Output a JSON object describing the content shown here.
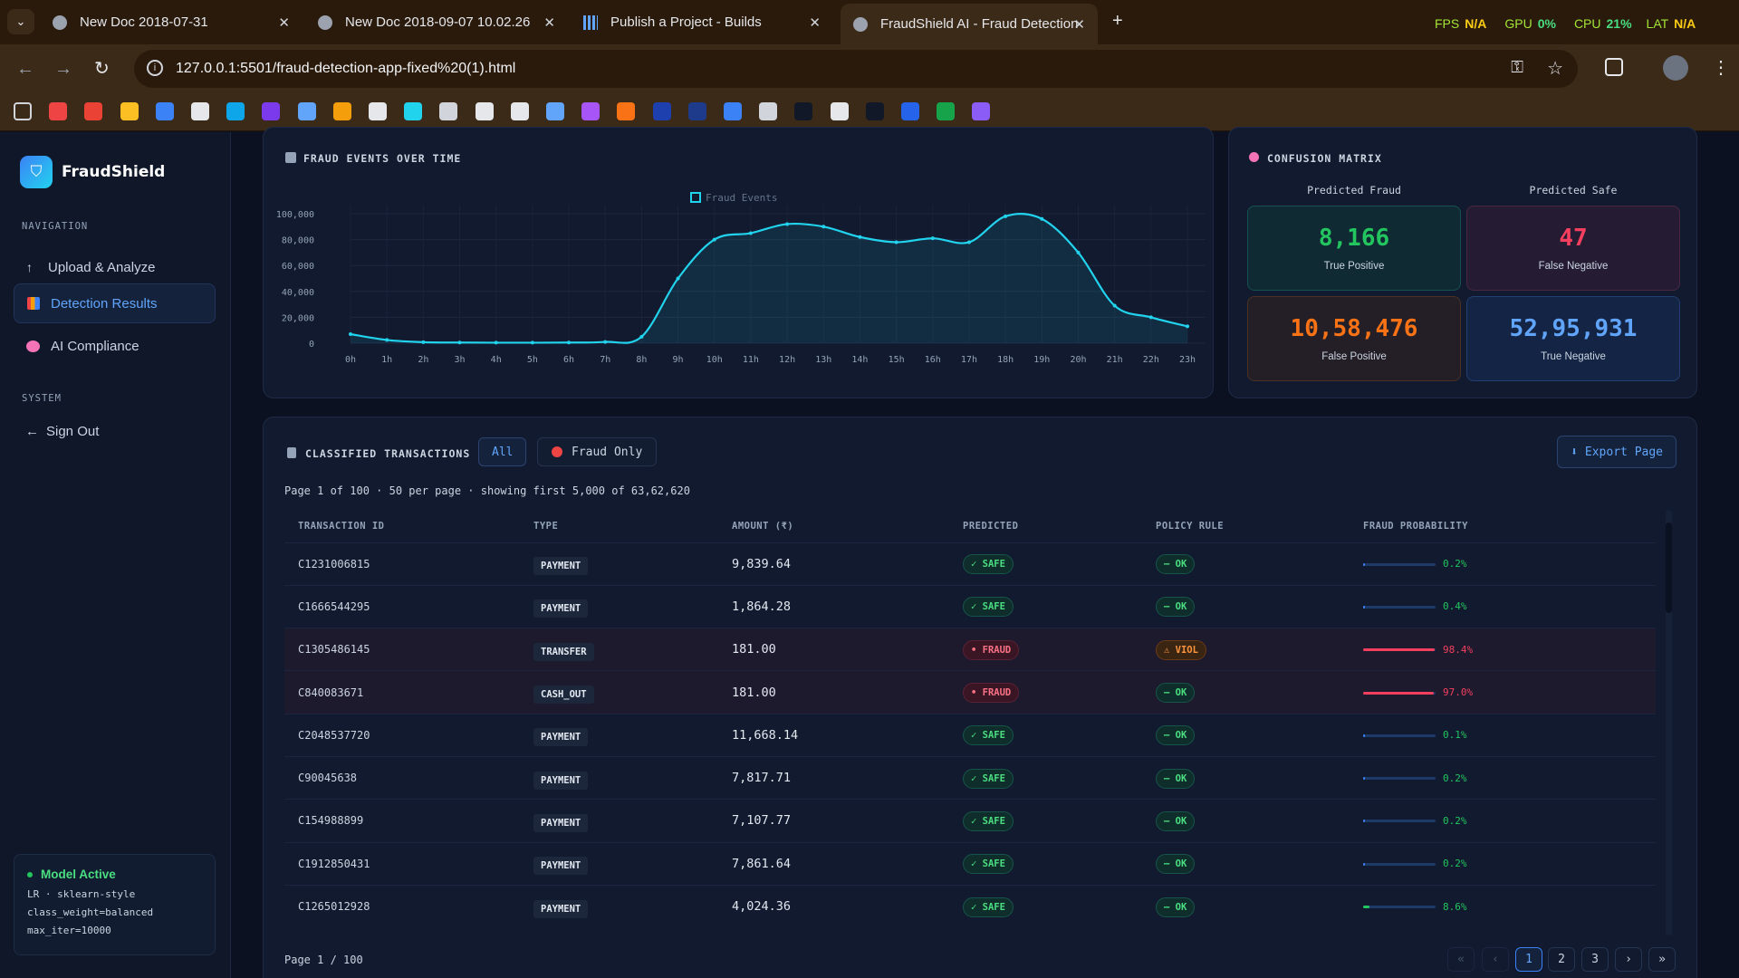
{
  "browser": {
    "tabs": [
      {
        "title": "New Doc 2018-07-31"
      },
      {
        "title": "New Doc 2018-09-07 10.02.26"
      },
      {
        "title": "Publish a Project - Builds"
      },
      {
        "title": "FraudShield AI - Fraud Detection"
      }
    ],
    "overlay": {
      "fps_label": "FPS",
      "fps_value": "N/A",
      "gpu_label": "GPU",
      "gpu_value": "0%",
      "cpu_label": "CPU",
      "cpu_value": "21%",
      "lat_label": "LAT",
      "lat_value": "N/A"
    },
    "url": "127.0.0.1:5501/fraud-detection-app-fixed%20(1).html",
    "bookmark_icons": [
      "apps",
      "youtube",
      "gmail",
      "keep",
      "meet",
      "six",
      "is",
      "h",
      "gemini",
      "blender",
      "github",
      "plus",
      "cat",
      "chatgpt",
      "s",
      "bot",
      "star",
      "sparkle",
      "un",
      "d",
      "shape",
      "globe",
      "hi",
      "cc",
      "tuf",
      "c",
      "gg",
      "u"
    ]
  },
  "sidebar": {
    "brand": "FraudShield",
    "nav_heading": "NAVIGATION",
    "items": [
      {
        "label": "Upload & Analyze",
        "icon": "upload-icon"
      },
      {
        "label": "Detection Results",
        "icon": "chart-icon"
      },
      {
        "label": "AI Compliance",
        "icon": "brain-icon"
      }
    ],
    "system_heading": "SYSTEM",
    "signout": "Sign Out",
    "model": {
      "status": "Model Active",
      "line1": "LR · sklearn-style",
      "line2": "class_weight=balanced",
      "line3": "max_iter=10000"
    }
  },
  "fraud_chart": {
    "title": "FRAUD EVENTS OVER TIME"
  },
  "chart_data": {
    "type": "area",
    "title": "FRAUD EVENTS OVER TIME",
    "legend": "Fraud Events",
    "legend_position": "top-center",
    "x": [
      "0h",
      "1h",
      "2h",
      "3h",
      "4h",
      "5h",
      "6h",
      "7h",
      "8h",
      "9h",
      "10h",
      "11h",
      "12h",
      "13h",
      "14h",
      "15h",
      "16h",
      "17h",
      "18h",
      "19h",
      "20h",
      "21h",
      "22h",
      "23h"
    ],
    "series": [
      {
        "name": "Fraud Events",
        "values": [
          7000,
          2500,
          800,
          500,
          400,
          400,
          500,
          1000,
          5000,
          50000,
          80000,
          85000,
          92000,
          90000,
          82000,
          78000,
          81000,
          78000,
          98000,
          96000,
          70000,
          29000,
          20000,
          13000
        ]
      }
    ],
    "yticks": [
      "0",
      "20,000",
      "40,000",
      "60,000",
      "80,000",
      "100,000"
    ],
    "ylim": [
      0,
      100000
    ],
    "grid": true,
    "color": "#22d3ee"
  },
  "confusion": {
    "title": "CONFUSION MATRIX",
    "col1": "Predicted Fraud",
    "col2": "Predicted Safe",
    "tp": {
      "value": "8,166",
      "label": "True Positive"
    },
    "fn": {
      "value": "47",
      "label": "False Negative"
    },
    "fp": {
      "value": "10,58,476",
      "label": "False Positive"
    },
    "tn": {
      "value": "52,95,931",
      "label": "True Negative"
    }
  },
  "transactions": {
    "title": "CLASSIFIED TRANSACTIONS",
    "filter_all": "All",
    "filter_fraud": "Fraud Only",
    "export": "Export Page",
    "summary": "Page 1 of 100 · 50 per page · showing first 5,000 of 63,62,620",
    "columns": [
      "TRANSACTION ID",
      "TYPE",
      "AMOUNT (₹)",
      "PREDICTED",
      "POLICY RULE",
      "FRAUD PROBABILITY"
    ],
    "rows": [
      {
        "id": "C1231006815",
        "type": "PAYMENT",
        "amount": "9,839.64",
        "pred": "✓ SAFE",
        "rule": "— OK",
        "prob": "0.2%",
        "p": 0.002,
        "fraud": false,
        "viol": false
      },
      {
        "id": "C1666544295",
        "type": "PAYMENT",
        "amount": "1,864.28",
        "pred": "✓ SAFE",
        "rule": "— OK",
        "prob": "0.4%",
        "p": 0.004,
        "fraud": false,
        "viol": false
      },
      {
        "id": "C1305486145",
        "type": "TRANSFER",
        "amount": "181.00",
        "pred": "• FRAUD",
        "rule": "⚠ VIOL",
        "prob": "98.4%",
        "p": 0.984,
        "fraud": true,
        "viol": true
      },
      {
        "id": "C840083671",
        "type": "CASH_OUT",
        "amount": "181.00",
        "pred": "• FRAUD",
        "rule": "— OK",
        "prob": "97.0%",
        "p": 0.97,
        "fraud": true,
        "viol": false
      },
      {
        "id": "C2048537720",
        "type": "PAYMENT",
        "amount": "11,668.14",
        "pred": "✓ SAFE",
        "rule": "— OK",
        "prob": "0.1%",
        "p": 0.001,
        "fraud": false,
        "viol": false
      },
      {
        "id": "C90045638",
        "type": "PAYMENT",
        "amount": "7,817.71",
        "pred": "✓ SAFE",
        "rule": "— OK",
        "prob": "0.2%",
        "p": 0.002,
        "fraud": false,
        "viol": false
      },
      {
        "id": "C154988899",
        "type": "PAYMENT",
        "amount": "7,107.77",
        "pred": "✓ SAFE",
        "rule": "— OK",
        "prob": "0.2%",
        "p": 0.002,
        "fraud": false,
        "viol": false
      },
      {
        "id": "C1912850431",
        "type": "PAYMENT",
        "amount": "7,861.64",
        "pred": "✓ SAFE",
        "rule": "— OK",
        "prob": "0.2%",
        "p": 0.002,
        "fraud": false,
        "viol": false
      },
      {
        "id": "C1265012928",
        "type": "PAYMENT",
        "amount": "4,024.36",
        "pred": "✓ SAFE",
        "rule": "— OK",
        "prob": "8.6%",
        "p": 0.086,
        "fraud": false,
        "viol": false
      }
    ],
    "footer": "Page 1 / 100",
    "pages": [
      "«",
      "‹",
      "1",
      "2",
      "3",
      "›",
      "»"
    ]
  }
}
